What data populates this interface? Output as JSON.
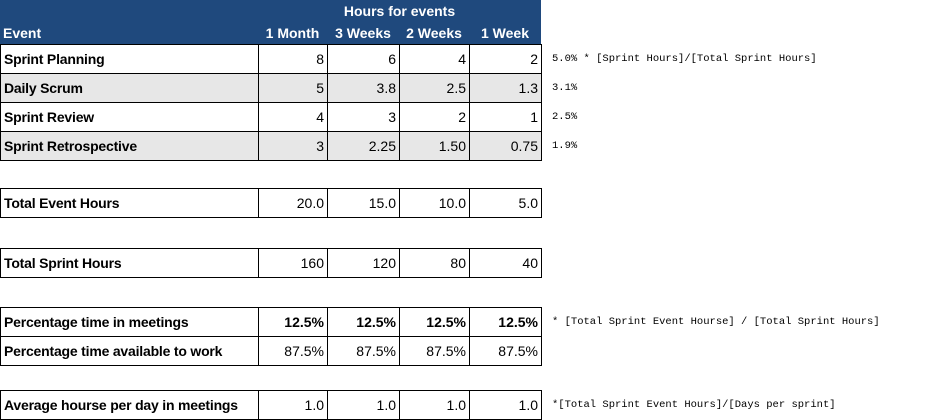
{
  "header": {
    "group": "Hours for events",
    "columns": [
      "Event",
      "1 Month",
      "3 Weeks",
      "2 Weeks",
      "1 Week"
    ]
  },
  "sections": [
    {
      "rows": [
        {
          "label": "Sprint Planning",
          "cells": [
            "8",
            "6",
            "4",
            "2"
          ],
          "note": "5.0% * [Sprint Hours]/[Total Sprint Hours]"
        },
        {
          "label": "Daily Scrum",
          "cells": [
            "5",
            "3.8",
            "2.5",
            "1.3"
          ],
          "note": "3.1%"
        },
        {
          "label": "Sprint Review",
          "cells": [
            "4",
            "3",
            "2",
            "1"
          ],
          "note": "2.5%"
        },
        {
          "label": "Sprint Retrospective",
          "cells": [
            "3",
            "2.25",
            "1.50",
            "0.75"
          ],
          "note": "1.9%"
        }
      ]
    },
    {
      "rows": [
        {
          "label": "Total Event Hours",
          "cells": [
            "20.0",
            "15.0",
            "10.0",
            "5.0"
          ]
        }
      ]
    },
    {
      "rows": [
        {
          "label": "Total Sprint Hours",
          "cells": [
            "160",
            "120",
            "80",
            "40"
          ]
        }
      ]
    },
    {
      "rows": [
        {
          "label": "Percentage time in meetings",
          "cells": [
            "12.5%",
            "12.5%",
            "12.5%",
            "12.5%"
          ],
          "note": "* [Total Sprint Event Hourse] / [Total Sprint Hours]"
        },
        {
          "label": "Percentage time available to work",
          "cells": [
            "87.5%",
            "87.5%",
            "87.5%",
            "87.5%"
          ]
        }
      ]
    },
    {
      "rows": [
        {
          "label": "Average hourse per day in meetings",
          "cells": [
            "1.0",
            "1.0",
            "1.0",
            "1.0"
          ],
          "note": "*[Total Sprint Event Hours]/[Days per sprint]"
        }
      ]
    }
  ]
}
